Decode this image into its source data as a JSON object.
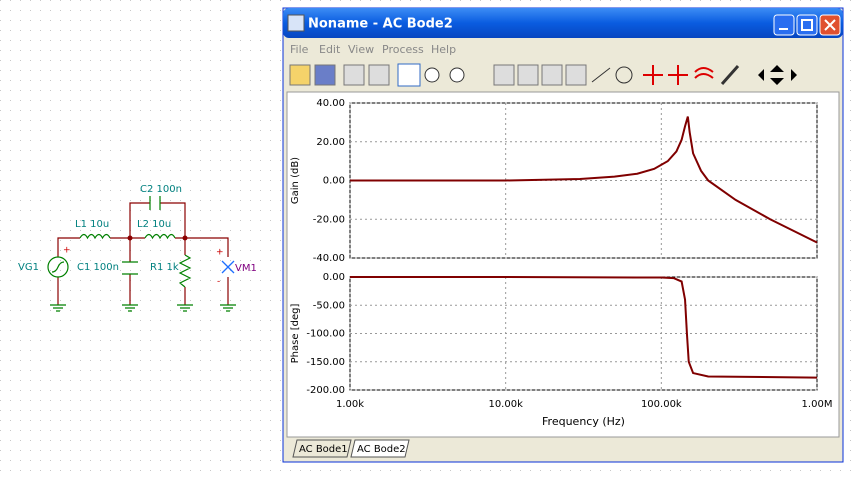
{
  "schematic": {
    "labels": {
      "c2": "C2 100n",
      "l1": "L1 10u",
      "l2": "L2 10u",
      "vg1": "VG1",
      "c1": "C1 100n",
      "r1": "R1 1k",
      "vm1": "VM1",
      "vg1_plus": "+",
      "vm1_plus": "+",
      "vm1_minus": "-"
    }
  },
  "window": {
    "title": "Noname - AC Bode2",
    "menu": [
      "File",
      "Edit",
      "View",
      "Process",
      "Help"
    ],
    "tabs": [
      "AC Bode1",
      "AC Bode2"
    ]
  },
  "chart_data": [
    {
      "type": "line",
      "y_label": "Gain (dB)",
      "log_x": true,
      "grid": true,
      "x": [
        1000,
        10000,
        30000,
        50000,
        70000,
        90000,
        110000,
        125000,
        135000,
        142000,
        148000,
        152000,
        160000,
        180000,
        200000,
        300000,
        500000,
        1000000
      ],
      "series": [
        {
          "color": "#800000",
          "values": [
            0,
            0,
            0.8,
            2,
            3.5,
            6,
            10,
            15,
            21,
            28,
            33,
            25,
            14,
            5,
            0,
            -10,
            -20,
            -32
          ]
        }
      ],
      "xlim": [
        1000,
        1000000
      ],
      "ylim": [
        -40,
        40
      ],
      "yticks": [
        {
          "value": 40,
          "label": "40.00"
        },
        {
          "value": 20,
          "label": "20.00"
        },
        {
          "value": 0,
          "label": "0.00"
        },
        {
          "value": -20,
          "label": "-20.00"
        },
        {
          "value": -40,
          "label": "-40.00"
        }
      ]
    },
    {
      "type": "line",
      "y_label": "Phase [deg]",
      "x_label": "Frequency (Hz)",
      "log_x": true,
      "grid": true,
      "x": [
        1000,
        10000,
        100000,
        120000,
        135000,
        142000,
        146000,
        150000,
        160000,
        200000,
        1000000
      ],
      "series": [
        {
          "color": "#800000",
          "values": [
            0,
            0,
            -1,
            -2,
            -8,
            -40,
            -100,
            -150,
            -170,
            -176,
            -178
          ]
        }
      ],
      "xlim": [
        1000,
        1000000
      ],
      "ylim": [
        -200,
        0
      ],
      "xticks": [
        {
          "value": 1000,
          "label": "1.00k"
        },
        {
          "value": 10000,
          "label": "10.00k"
        },
        {
          "value": 100000,
          "label": "100.00k"
        },
        {
          "value": 1000000,
          "label": "1.00M"
        }
      ],
      "yticks": [
        {
          "value": 0,
          "label": "0.00"
        },
        {
          "value": -50,
          "label": "-50.00"
        },
        {
          "value": -100,
          "label": "-100.00"
        },
        {
          "value": -150,
          "label": "-150.00"
        },
        {
          "value": -200,
          "label": "-200.00"
        }
      ]
    }
  ]
}
